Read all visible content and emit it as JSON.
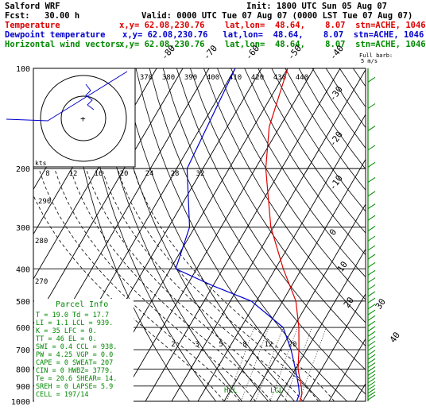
{
  "header": {
    "model": "Salford WRF",
    "init": "Init: 1800 UTC Sun 05 Aug 07",
    "fcst_label": "Fcst:",
    "fcst_value": "30.00 h",
    "valid": "Valid: 0000 UTC Tue 07 Aug 07 (0000 LST Tue 07 Aug 07)",
    "rows": [
      {
        "name": "Temperature",
        "info": "x,y= 62.08,230.76    lat,lon=  48.64,    8.07  stn=ACHE, 1046",
        "color": "#dd0000"
      },
      {
        "name": "Dewpoint temperature",
        "info": "x,y= 62.08,230.76   lat,lon=  48.64,    8.07  stn=ACHE, 1046",
        "color": "#0000cc"
      },
      {
        "name": "Horizontal wind vectors",
        "info": "x,y= 62.08,230.76    lat,lon=  48.64,    8.07  stn=ACHE, 1046",
        "color": "#008800"
      }
    ]
  },
  "chart_data": {
    "type": "line",
    "diagram": "skew-T log-p",
    "y_axis": {
      "pressure_ticks": [
        "100",
        "200",
        "300",
        "400",
        "500",
        "600",
        "700",
        "800",
        "900",
        "1000"
      ],
      "ylim": [
        1000,
        100
      ]
    },
    "mixing_ratio_labels": [
      "2",
      "3",
      "5",
      "8",
      "12",
      "20"
    ],
    "theta_e_labels": [
      "370",
      "380",
      "390",
      "400",
      "410",
      "420",
      "430",
      "440"
    ],
    "second_row_labels": [
      "8",
      "12",
      "16",
      "20",
      "24",
      "28",
      "32"
    ],
    "temperature_labels_top": [
      "-80",
      "-70",
      "-60",
      "-50",
      "-40"
    ],
    "temperature_labels_right": [
      "-30",
      "-20",
      "-10",
      "0",
      "10",
      "20",
      "30",
      "40"
    ],
    "side_scale_labels": [
      "290",
      "280",
      "270"
    ],
    "series": [
      {
        "name": "Temperature",
        "color": "#dd0000",
        "points": [
          [
            100,
            -60
          ],
          [
            150,
            -54
          ],
          [
            200,
            -46
          ],
          [
            300,
            -31
          ],
          [
            400,
            -17
          ],
          [
            500,
            -5
          ],
          [
            600,
            2
          ],
          [
            700,
            7
          ],
          [
            800,
            11
          ],
          [
            900,
            16
          ],
          [
            950,
            18
          ],
          [
            1000,
            19
          ]
        ]
      },
      {
        "name": "Dewpoint temperature",
        "color": "#0000cc",
        "points": [
          [
            100,
            -80
          ],
          [
            200,
            -76
          ],
          [
            300,
            -62
          ],
          [
            400,
            -58
          ],
          [
            450,
            -40
          ],
          [
            500,
            -22
          ],
          [
            600,
            -4
          ],
          [
            700,
            4
          ],
          [
            800,
            10
          ],
          [
            900,
            15
          ],
          [
            950,
            17
          ],
          [
            1000,
            17.7
          ]
        ]
      }
    ],
    "hodograph": {
      "kts_label": "kts"
    },
    "wind_column_label": "Full barb:\n5 m/s",
    "parcel_info": {
      "title": "Parcel Info",
      "lines": [
        "T   =   19.0  Td =  17.7",
        "LI  =    1.1  LCL =  939.",
        "K   =    35   LFC =    0.",
        "TT  =    46   EL  =    0.",
        "SWI =    0.4  CCL =  938.",
        "PW  =   4.25  VGP =   0.0",
        "CAPE =    0  SWEAT= 207",
        "CIN  =    0  HWBZ= 3779.",
        "Te  =   20.6  SHEAR= 14.",
        "SREH =    0  LAPSE=  5.9",
        "CELL = 197/14"
      ]
    },
    "annotations": [
      "HCL",
      "LCL"
    ]
  }
}
